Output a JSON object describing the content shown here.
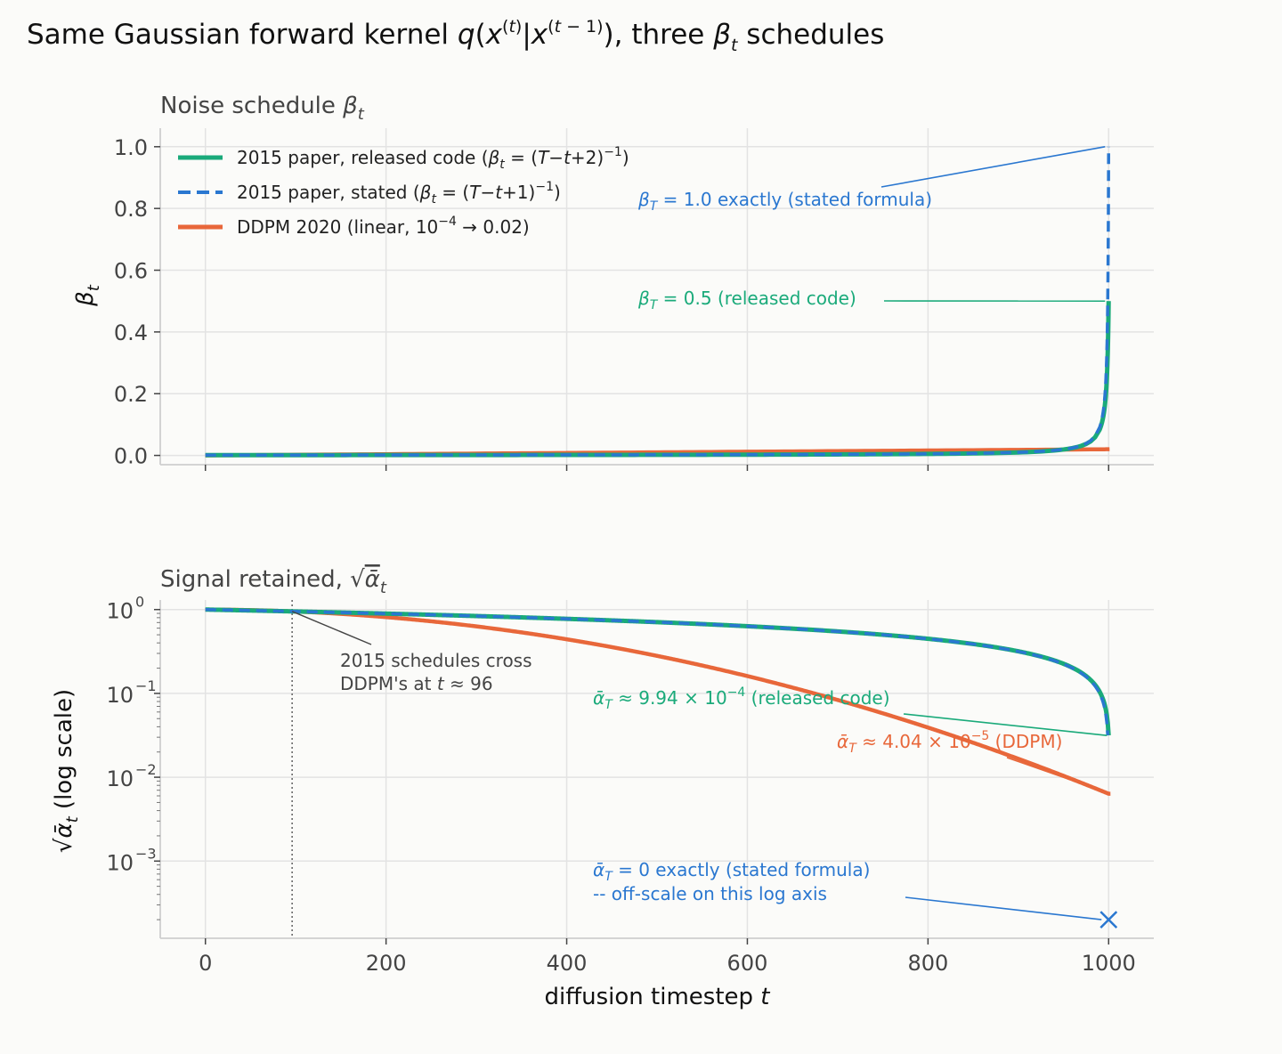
{
  "figure": {
    "suptitle": "Same Gaussian forward kernel q(x^(t)|x^(t-1)), three β_t schedules"
  },
  "colors": {
    "released": "#1aaa7a",
    "stated": "#2a77d0",
    "ddpm": "#e8673a",
    "annotation_gray": "#444444"
  },
  "chart_data": [
    {
      "type": "line",
      "title": "Noise schedule β_t",
      "xlabel": "",
      "ylabel": "β_t",
      "xlim": [
        -50,
        1050
      ],
      "ylim": [
        -0.03,
        1.06
      ],
      "xticks": [
        0,
        200,
        400,
        600,
        800,
        1000
      ],
      "yticks": [
        0.0,
        0.2,
        0.4,
        0.6,
        0.8,
        1.0
      ],
      "ytick_labels": [
        "0.0",
        "0.2",
        "0.4",
        "0.6",
        "0.8",
        "1.0"
      ],
      "grid": true,
      "legend_position": "top-left",
      "T": 1000,
      "series": [
        {
          "name": "2015 paper, released code (β_t = (T−t+2)^−1)",
          "key": "released",
          "formula": "1/(T-t+2)",
          "style": "solid",
          "endpoint": 0.5
        },
        {
          "name": "2015 paper, stated (β_t = (T−t+1)^−1)",
          "key": "stated",
          "formula": "1/(T-t+1)",
          "style": "dashed",
          "endpoint": 1.0
        },
        {
          "name": "DDPM 2020 (linear, 10^−4 → 0.02)",
          "key": "ddpm",
          "formula": "linear 1e-4 to 0.02",
          "style": "solid",
          "endpoint": 0.02
        }
      ],
      "annotations": [
        {
          "text": "β_T = 1.0 exactly (stated formula)",
          "series": "stated",
          "point": [
            1000,
            1.0
          ]
        },
        {
          "text": "β_T = 0.5 (released code)",
          "series": "released",
          "point": [
            1000,
            0.5
          ]
        }
      ]
    },
    {
      "type": "line",
      "title": "Signal retained, √ᾱ_t",
      "xlabel": "diffusion timestep t",
      "ylabel": "√ᾱ_t (log scale)",
      "yscale": "log",
      "xlim": [
        -50,
        1050
      ],
      "ylim": [
        0.00012,
        1.3
      ],
      "xticks": [
        0,
        200,
        400,
        600,
        800,
        1000
      ],
      "xtick_labels": [
        "0",
        "200",
        "400",
        "600",
        "800",
        "1000"
      ],
      "yticks": [
        1,
        0.1,
        0.01,
        0.001
      ],
      "ytick_labels": [
        {
          "base": "10",
          "exp": "0"
        },
        {
          "base": "10",
          "exp": "−1"
        },
        {
          "base": "10",
          "exp": "−2"
        },
        {
          "base": "10",
          "exp": "−3"
        }
      ],
      "grid": true,
      "crossover_t": 96,
      "series": [
        {
          "key": "released",
          "style": "solid",
          "final_sqrt_alpha_bar": 0.0315
        },
        {
          "key": "stated",
          "style": "dashed",
          "final_sqrt_alpha_bar": 0
        },
        {
          "key": "ddpm",
          "style": "solid",
          "final_sqrt_alpha_bar": 0.00636
        }
      ],
      "annotations": [
        {
          "text": "2015 schedules cross",
          "text2": "DDPM's at t ≈ 96",
          "point": [
            96,
            0.95
          ]
        },
        {
          "text": "ᾱ_T ≈ 9.94 × 10^−4 (released code)",
          "series": "released",
          "point": [
            1000,
            0.0315
          ]
        },
        {
          "text": "ᾱ_T ≈ 4.04 × 10^−5 (DDPM)",
          "series": "ddpm",
          "point": [
            1000,
            0.00636
          ]
        },
        {
          "text": "ᾱ_T = 0 exactly (stated formula)",
          "text2": "-- off-scale on this log axis",
          "series": "stated",
          "point": [
            1000,
            0.0002
          ]
        }
      ]
    }
  ]
}
